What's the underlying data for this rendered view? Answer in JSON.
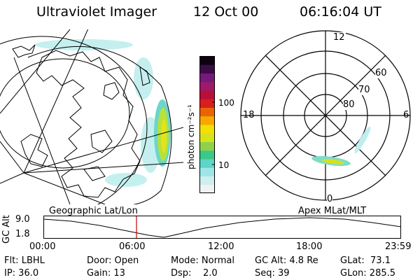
{
  "header": {
    "title": "Ultraviolet Imager",
    "date": "12 Oct 00",
    "time": "06:16:04 UT"
  },
  "colorbar": {
    "label": "photon cm⁻²s⁻¹",
    "ticks": [
      "100",
      "10"
    ],
    "scale": "log",
    "colors": [
      "#f2f2f2",
      "#cfeeee",
      "#9ee6e6",
      "#5cd6c6",
      "#3cc88a",
      "#8fd24a",
      "#d6e21c",
      "#f2e000",
      "#f6a800",
      "#ec6400",
      "#d81e1e",
      "#b80e3a",
      "#9c1a6a",
      "#741a78",
      "#3c0c48",
      "#100010"
    ]
  },
  "geo_panel": {
    "caption": "Geographic Lat/Lon"
  },
  "apex_panel": {
    "caption": "Apex MLat/MLT",
    "mlt_labels": [
      "12",
      "18",
      "6",
      "0"
    ],
    "lat_labels": [
      "60",
      "70",
      "80"
    ]
  },
  "altitude_plot": {
    "ylabel": "GC Alt",
    "yticks": [
      "9.0",
      "1.8"
    ],
    "xticks": [
      "00:00",
      "06:00",
      "12:00",
      "18:00",
      "23:59"
    ],
    "marker_time": "06:16"
  },
  "footer": {
    "row1": {
      "flt": "Flt: LBHL",
      "door": "Door: Open",
      "mode": "Mode: Normal",
      "gc_alt": "GC Alt: 4.8 Re",
      "glat": "GLat:  73.1"
    },
    "row2": {
      "ip": "IP: 36.0",
      "gain": "Gain: 13",
      "dsp": "Dsp:    2.0",
      "seq": "Seq: 39",
      "glon": "GLon: 285.5"
    }
  }
}
